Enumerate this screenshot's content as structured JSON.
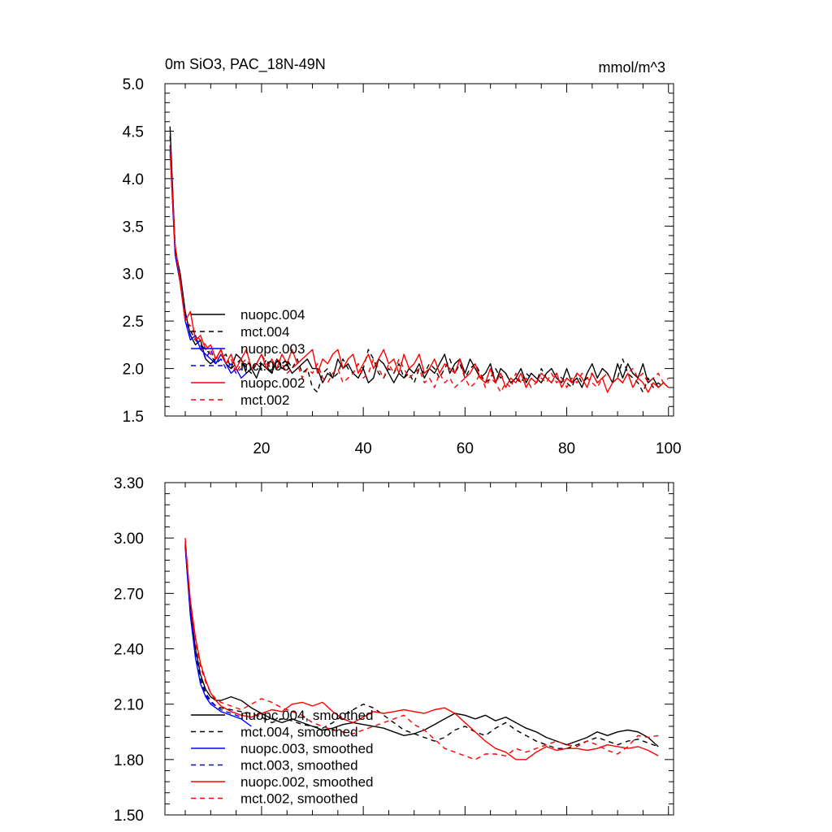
{
  "chart_data": [
    {
      "type": "line",
      "title": "0m SiO3, PAC_18N-49N",
      "units": "mmol/m^3",
      "xlim": [
        1,
        101
      ],
      "ylim": [
        1.5,
        5.0
      ],
      "xticks": [
        20,
        40,
        60,
        80,
        100
      ],
      "xtick_labels": [
        "20",
        "40",
        "60",
        "80",
        "100"
      ],
      "yticks": [
        1.5,
        2.0,
        2.5,
        3.0,
        3.5,
        4.0,
        4.5,
        5.0
      ],
      "ytick_labels": [
        "1.5",
        "2.0",
        "2.5",
        "3.0",
        "3.5",
        "4.0",
        "4.5",
        "5.0"
      ],
      "legend_location": "lower-left",
      "series": [
        {
          "name": "nuopc.004",
          "color": "#000000",
          "dash": "solid",
          "x_start": 2,
          "values": [
            4.55,
            3.25,
            3.0,
            2.6,
            2.35,
            2.25,
            2.3,
            2.1,
            2.05,
            2.1,
            2.2,
            2.05,
            2.0,
            2.15,
            2.1,
            1.95,
            2.0,
            1.9,
            2.05,
            2.0,
            1.95,
            2.1,
            2.0,
            2.05,
            1.95,
            2.0,
            2.05,
            2.1,
            2.0,
            2.0,
            1.85,
            1.95,
            1.9,
            2.1,
            2.0,
            2.05,
            1.95,
            1.9,
            2.0,
            1.85,
            1.9,
            2.1,
            2.05,
            1.95,
            1.85,
            1.95,
            1.9,
            2.0,
            1.95,
            2.05,
            1.9,
            2.0,
            1.95,
            2.05,
            2.15,
            1.95,
            2.05,
            2.1,
            1.95,
            2.1,
            2.0,
            1.9,
            1.95,
            2.05,
            1.85,
            2.0,
            1.95,
            1.85,
            1.9,
            2.0,
            1.85,
            1.95,
            1.9,
            1.85,
            1.95,
            2.0,
            1.9,
            1.85,
            2.0,
            1.85,
            1.9,
            1.8,
            1.95,
            2.05,
            1.9,
            2.0,
            1.95,
            1.85,
            2.05,
            1.9,
            2.05,
            1.95,
            1.9,
            2.05,
            1.85,
            1.9,
            1.8,
            1.85,
            1.8
          ]
        },
        {
          "name": "mct.004",
          "color": "#000000",
          "dash": "dashed",
          "x_start": 2,
          "values": [
            4.45,
            3.3,
            2.95,
            2.55,
            2.4,
            2.3,
            2.25,
            2.2,
            2.15,
            2.05,
            2.1,
            2.15,
            2.0,
            2.05,
            2.1,
            2.0,
            1.95,
            2.05,
            2.0,
            2.1,
            1.95,
            2.0,
            2.05,
            2.1,
            2.0,
            2.1,
            1.95,
            2.0,
            1.8,
            1.75,
            1.95,
            2.0,
            1.9,
            1.95,
            2.1,
            2.0,
            1.95,
            2.05,
            2.0,
            2.2,
            2.1,
            1.95,
            1.9,
            2.0,
            1.95,
            2.05,
            1.9,
            1.95,
            1.85,
            2.0,
            1.95,
            2.05,
            2.0,
            1.9,
            2.0,
            2.1,
            1.95,
            2.05,
            1.9,
            2.0,
            2.05,
            1.95,
            1.85,
            1.9,
            2.0,
            1.9,
            1.95,
            1.85,
            1.9,
            1.85,
            1.95,
            1.9,
            1.85,
            2.0,
            1.9,
            1.85,
            1.95,
            1.9,
            1.85,
            1.8,
            1.95,
            1.85,
            1.9,
            1.95,
            1.85,
            1.9,
            1.95,
            1.85,
            1.9,
            2.1,
            1.95,
            1.9,
            1.85,
            1.75,
            1.9,
            1.8,
            1.85,
            1.8
          ]
        },
        {
          "name": "nuopc.003",
          "color": "#0000ff",
          "dash": "solid",
          "x_start": 2,
          "values": [
            4.3,
            3.2,
            2.9,
            2.5,
            2.3,
            2.35,
            2.2,
            2.15,
            2.1,
            2.05,
            2.15,
            2.05,
            1.95,
            2.0,
            1.9,
            1.95
          ]
        },
        {
          "name": "mct.003",
          "color": "#0000ff",
          "dash": "dashed",
          "x_start": 2,
          "values": [
            4.35,
            3.25,
            2.95,
            2.55,
            2.35,
            2.3,
            2.25,
            2.1,
            2.2,
            2.05,
            2.1,
            2.0,
            2.05,
            1.95,
            2.0
          ]
        },
        {
          "name": "nuopc.002",
          "color": "#ff0000",
          "dash": "solid",
          "x_start": 2,
          "values": [
            4.35,
            3.3,
            2.9,
            2.5,
            2.6,
            2.3,
            2.35,
            2.2,
            2.25,
            2.1,
            2.2,
            2.05,
            2.15,
            2.0,
            2.1,
            2.2,
            2.0,
            2.05,
            2.15,
            2.0,
            2.1,
            2.0,
            2.15,
            2.05,
            2.2,
            2.05,
            2.1,
            2.15,
            2.2,
            1.95,
            2.1,
            2.05,
            2.15,
            2.2,
            2.0,
            2.1,
            2.15,
            1.95,
            2.05,
            2.15,
            2.0,
            2.1,
            2.2,
            2.05,
            2.1,
            1.95,
            2.15,
            2.0,
            2.05,
            2.15,
            1.95,
            2.0,
            2.1,
            1.95,
            2.05,
            2.0,
            1.95,
            2.1,
            1.9,
            1.95,
            2.05,
            1.9,
            1.85,
            2.0,
            1.85,
            1.95,
            1.8,
            1.9,
            1.85,
            1.95,
            1.8,
            1.9,
            1.85,
            1.95,
            1.9,
            1.85,
            1.95,
            1.8,
            1.9,
            1.85,
            1.95,
            1.9,
            1.8,
            1.95,
            1.85,
            1.9,
            1.75,
            1.85,
            1.9,
            1.85,
            1.95,
            1.8,
            1.9,
            1.85,
            1.75,
            1.85,
            1.8,
            1.85,
            1.8
          ]
        },
        {
          "name": "mct.002",
          "color": "#ff0000",
          "dash": "dashed",
          "x_start": 2,
          "values": [
            4.25,
            3.25,
            2.95,
            2.5,
            2.45,
            2.35,
            2.3,
            2.25,
            2.15,
            2.1,
            2.15,
            2.05,
            2.1,
            1.95,
            2.05,
            2.1,
            2.0,
            2.05,
            2.15,
            2.05,
            2.0,
            2.1,
            2.05,
            1.95,
            2.0,
            2.05,
            1.9,
            2.0,
            1.95,
            2.05,
            1.9,
            1.85,
            1.95,
            2.0,
            1.85,
            1.9,
            1.95,
            2.05,
            1.9,
            1.95,
            2.1,
            2.0,
            1.9,
            2.05,
            1.95,
            2.1,
            2.0,
            1.9,
            1.95,
            2.0,
            1.85,
            1.9,
            1.8,
            1.95,
            1.85,
            1.9,
            1.8,
            1.85,
            1.9,
            1.8,
            1.85,
            1.95,
            1.8,
            1.9,
            1.85,
            1.75,
            1.85,
            1.8,
            1.95,
            1.85,
            1.9,
            1.8,
            1.85,
            1.9,
            1.85,
            1.95,
            1.85,
            1.9,
            1.8,
            1.9,
            1.85,
            1.95,
            1.9,
            1.85,
            1.8,
            1.9,
            1.95,
            1.85,
            1.9,
            1.85,
            1.95,
            2.0,
            1.9,
            1.95,
            1.85,
            1.9,
            1.95,
            1.85,
            1.9
          ]
        }
      ]
    },
    {
      "type": "line",
      "xlim": [
        1,
        101
      ],
      "ylim": [
        1.5,
        3.3
      ],
      "yticks": [
        1.5,
        1.8,
        2.1,
        2.4,
        2.7,
        3.0,
        3.3
      ],
      "ytick_labels": [
        "1.50",
        "1.80",
        "2.10",
        "2.40",
        "2.70",
        "3.00",
        "3.30"
      ],
      "xtick_positions": [
        20,
        40,
        60,
        80,
        100
      ],
      "legend_location": "lower-left",
      "series": [
        {
          "name": "nuopc.004, smoothed",
          "color": "#000000",
          "dash": "solid",
          "x": [
            5,
            6,
            7,
            8,
            9,
            10,
            11,
            12,
            14,
            16,
            18,
            20,
            22,
            24,
            26,
            28,
            30,
            32,
            34,
            36,
            38,
            40,
            42,
            44,
            46,
            48,
            50,
            52,
            54,
            56,
            58,
            60,
            62,
            64,
            66,
            68,
            70,
            72,
            74,
            76,
            78,
            80,
            82,
            84,
            86,
            88,
            90,
            92,
            94,
            96,
            98
          ],
          "values": [
            2.97,
            2.62,
            2.4,
            2.26,
            2.18,
            2.14,
            2.12,
            2.12,
            2.14,
            2.12,
            2.08,
            2.05,
            2.02,
            2.0,
            2.02,
            2.0,
            1.98,
            1.96,
            1.97,
            1.99,
            2.0,
            1.99,
            1.98,
            1.97,
            1.95,
            1.93,
            1.94,
            1.96,
            1.99,
            2.02,
            2.05,
            2.04,
            2.02,
            2.04,
            2.01,
            2.03,
            2.0,
            1.97,
            1.95,
            1.92,
            1.9,
            1.88,
            1.9,
            1.92,
            1.95,
            1.93,
            1.95,
            1.96,
            1.95,
            1.92,
            1.87
          ]
        },
        {
          "name": "mct.004, smoothed",
          "color": "#000000",
          "dash": "dashed",
          "x": [
            5,
            6,
            7,
            8,
            9,
            10,
            11,
            12,
            14,
            16,
            18,
            20,
            22,
            24,
            26,
            28,
            30,
            32,
            34,
            36,
            38,
            40,
            42,
            44,
            46,
            48,
            50,
            52,
            54,
            56,
            58,
            60,
            62,
            64,
            66,
            68,
            70,
            72,
            74,
            76,
            78,
            80,
            82,
            84,
            86,
            88,
            90,
            92,
            94,
            96,
            98
          ],
          "values": [
            2.96,
            2.6,
            2.38,
            2.24,
            2.16,
            2.12,
            2.09,
            2.08,
            2.07,
            2.06,
            2.05,
            2.03,
            2.0,
            2.02,
            2.01,
            1.99,
            1.98,
            1.97,
            2.0,
            2.04,
            2.07,
            2.1,
            2.08,
            2.04,
            2.0,
            1.96,
            1.94,
            1.92,
            1.9,
            1.92,
            1.96,
            1.98,
            1.95,
            1.93,
            1.97,
            2.0,
            1.96,
            1.93,
            1.9,
            1.88,
            1.86,
            1.86,
            1.88,
            1.9,
            1.92,
            1.9,
            1.88,
            1.9,
            1.91,
            1.89,
            1.87
          ]
        },
        {
          "name": "nuopc.003, smoothed",
          "color": "#0000ff",
          "dash": "solid",
          "x": [
            5,
            6,
            7,
            8,
            9,
            10,
            11,
            12,
            13,
            14,
            15,
            16,
            17,
            18
          ],
          "values": [
            2.95,
            2.58,
            2.35,
            2.21,
            2.14,
            2.1,
            2.08,
            2.06,
            2.05,
            2.04,
            2.03,
            2.02,
            2.0,
            1.98
          ]
        },
        {
          "name": "mct.003, smoothed",
          "color": "#0000ff",
          "dash": "dashed",
          "x": [
            5,
            6,
            7,
            8,
            9,
            10,
            11,
            12,
            13,
            14,
            15,
            16
          ],
          "values": [
            2.96,
            2.59,
            2.36,
            2.22,
            2.15,
            2.11,
            2.09,
            2.07,
            2.06,
            2.05,
            2.04,
            2.03
          ]
        },
        {
          "name": "nuopc.002, smoothed",
          "color": "#ff0000",
          "dash": "solid",
          "x": [
            5,
            6,
            7,
            8,
            9,
            10,
            11,
            12,
            14,
            16,
            18,
            20,
            22,
            24,
            26,
            28,
            30,
            32,
            34,
            36,
            38,
            40,
            42,
            44,
            46,
            48,
            50,
            52,
            54,
            56,
            58,
            60,
            62,
            64,
            66,
            68,
            70,
            72,
            74,
            76,
            78,
            80,
            82,
            84,
            86,
            88,
            90,
            92,
            94,
            96,
            98
          ],
          "values": [
            2.98,
            2.66,
            2.46,
            2.32,
            2.23,
            2.16,
            2.12,
            2.09,
            2.06,
            2.04,
            2.03,
            2.05,
            2.07,
            2.06,
            2.1,
            2.11,
            2.09,
            2.11,
            2.06,
            2.02,
            2.0,
            2.03,
            2.06,
            2.05,
            2.06,
            2.07,
            2.06,
            2.05,
            2.07,
            2.08,
            2.05,
            2.0,
            1.95,
            1.9,
            1.86,
            1.84,
            1.8,
            1.8,
            1.84,
            1.87,
            1.85,
            1.86,
            1.86,
            1.85,
            1.86,
            1.88,
            1.87,
            1.86,
            1.87,
            1.85,
            1.82
          ]
        },
        {
          "name": "mct.002, smoothed",
          "color": "#ff0000",
          "dash": "dashed",
          "x": [
            5,
            6,
            7,
            8,
            9,
            10,
            11,
            12,
            14,
            16,
            18,
            20,
            22,
            24,
            26,
            28,
            30,
            32,
            34,
            36,
            38,
            40,
            42,
            44,
            46,
            48,
            50,
            52,
            54,
            56,
            58,
            60,
            62,
            64,
            66,
            68,
            70,
            72,
            74,
            76,
            78,
            80,
            82,
            84,
            86,
            88,
            90,
            92,
            94,
            96,
            98
          ],
          "values": [
            3.0,
            2.64,
            2.43,
            2.3,
            2.22,
            2.16,
            2.13,
            2.11,
            2.09,
            2.07,
            2.1,
            2.13,
            2.11,
            2.08,
            2.06,
            2.04,
            2.0,
            1.98,
            1.96,
            1.95,
            1.94,
            1.96,
            1.98,
            2.0,
            2.02,
            2.04,
            1.99,
            1.96,
            1.91,
            1.86,
            1.84,
            1.82,
            1.8,
            1.83,
            1.83,
            1.82,
            1.86,
            1.84,
            1.86,
            1.88,
            1.9,
            1.88,
            1.87,
            1.9,
            1.88,
            1.85,
            1.83,
            1.87,
            1.93,
            1.92,
            1.93
          ]
        }
      ]
    }
  ]
}
